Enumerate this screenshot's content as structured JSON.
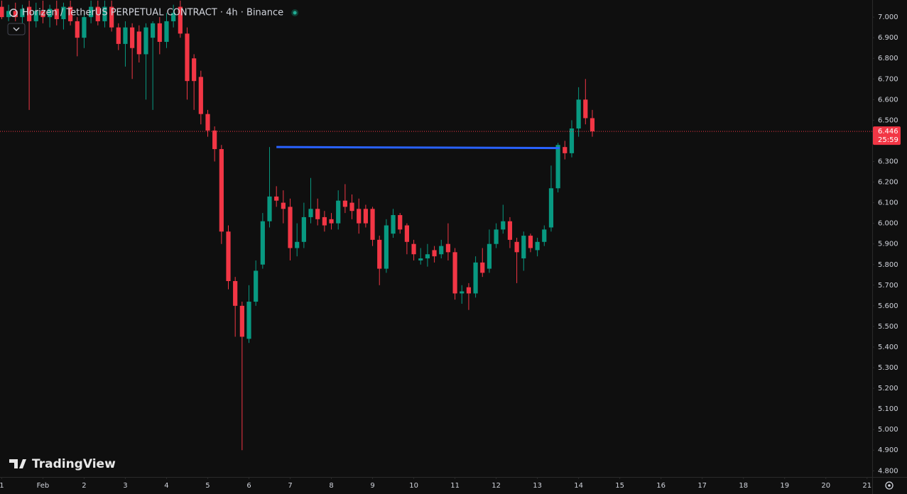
{
  "chart_data": {
    "type": "candlestick",
    "title": "Horizen / TetherUS PERPETUAL CONTRACT · 4h · Binance",
    "watermark": "TradingView",
    "up_color": "#089981",
    "down_color": "#f23645",
    "x": [
      0,
      4,
      8,
      12,
      16,
      20,
      24,
      28,
      32,
      36,
      40,
      44,
      48,
      52,
      56,
      60,
      64,
      68,
      72,
      76,
      80,
      84,
      88,
      92,
      96,
      100,
      104,
      108,
      112,
      116,
      120,
      124,
      128,
      132,
      136,
      140,
      144,
      148,
      152,
      156,
      160,
      164,
      168,
      172,
      176,
      180,
      184,
      188,
      192,
      196,
      200,
      204,
      208,
      212,
      216,
      220,
      224,
      228,
      232,
      236,
      240,
      244,
      248,
      252,
      256,
      260,
      264,
      268,
      272,
      276,
      280,
      284,
      288,
      292,
      296,
      300,
      304,
      308,
      312,
      316,
      320,
      324,
      328,
      332,
      336,
      340,
      344
    ],
    "open": [
      7.05,
      7.0,
      7.03,
      7.0,
      7.05,
      6.98,
      7.03,
      7.0,
      7.04,
      6.99,
      7.05,
      6.98,
      6.9,
      7.0,
      7.05,
      6.98,
      7.05,
      6.95,
      6.87,
      6.95,
      6.93,
      6.82,
      6.9,
      6.97,
      6.88,
      6.98,
      7.05,
      6.92,
      6.8,
      6.71,
      6.53,
      6.45,
      6.36,
      5.96,
      5.72,
      5.6,
      5.44,
      5.62,
      5.8,
      6.01,
      6.13,
      6.1,
      6.08,
      5.88,
      5.91,
      6.03,
      6.07,
      6.03,
      6.02,
      6.0,
      6.11,
      6.1,
      6.07,
      6.07,
      6.07,
      5.92,
      5.78,
      5.95,
      6.04,
      5.99,
      5.9,
      5.82,
      5.83,
      5.87,
      5.85,
      5.9,
      5.86,
      5.66,
      5.69,
      5.66,
      5.81,
      5.78,
      5.9,
      5.97,
      6.01,
      5.91,
      5.83,
      5.94,
      5.87,
      5.91,
      5.98,
      6.17,
      6.37,
      6.34,
      6.46,
      6.6,
      6.51
    ],
    "high": [
      7.08,
      7.06,
      7.07,
      7.06,
      7.08,
      7.07,
      7.08,
      7.06,
      7.08,
      7.07,
      7.08,
      7.0,
      7.02,
      7.08,
      7.08,
      7.08,
      7.08,
      6.97,
      6.98,
      6.97,
      6.96,
      6.97,
      6.98,
      7.0,
      7.02,
      7.06,
      7.08,
      6.95,
      6.82,
      6.74,
      6.55,
      6.47,
      6.38,
      5.99,
      5.74,
      5.62,
      5.7,
      5.82,
      6.05,
      6.37,
      6.18,
      6.16,
      6.12,
      6.0,
      6.1,
      6.22,
      6.12,
      6.06,
      6.05,
      6.16,
      6.19,
      6.14,
      6.12,
      6.09,
      6.08,
      5.94,
      6.02,
      6.07,
      6.05,
      6.0,
      5.92,
      5.88,
      5.9,
      5.89,
      5.92,
      6.0,
      5.88,
      5.7,
      5.71,
      5.84,
      5.88,
      5.97,
      6.0,
      6.09,
      6.03,
      5.93,
      5.96,
      5.95,
      5.93,
      5.99,
      6.28,
      6.39,
      6.4,
      6.5,
      6.66,
      6.7,
      6.55
    ],
    "low": [
      6.99,
      6.98,
      6.98,
      6.97,
      6.55,
      6.95,
      6.97,
      6.95,
      6.96,
      6.94,
      6.96,
      6.81,
      6.85,
      6.97,
      6.96,
      6.95,
      6.93,
      6.84,
      6.76,
      6.7,
      6.78,
      6.6,
      6.55,
      6.82,
      6.85,
      6.95,
      6.9,
      6.6,
      6.55,
      6.48,
      6.42,
      6.3,
      5.9,
      5.68,
      5.45,
      4.9,
      5.42,
      5.6,
      5.78,
      5.98,
      6.08,
      6.0,
      5.82,
      5.84,
      5.88,
      6.0,
      5.99,
      5.96,
      5.97,
      5.97,
      6.05,
      6.02,
      5.95,
      5.98,
      5.89,
      5.7,
      5.76,
      5.93,
      5.95,
      5.85,
      5.82,
      5.8,
      5.79,
      5.81,
      5.83,
      5.82,
      5.63,
      5.61,
      5.58,
      5.64,
      5.74,
      5.76,
      5.88,
      5.95,
      5.88,
      5.71,
      5.77,
      5.86,
      5.84,
      5.89,
      5.96,
      6.15,
      6.31,
      6.32,
      6.42,
      6.48,
      6.42
    ],
    "close": [
      7.0,
      7.03,
      7.0,
      7.04,
      6.98,
      7.03,
      7.0,
      7.04,
      6.99,
      7.05,
      6.98,
      6.9,
      7.0,
      7.05,
      6.98,
      7.05,
      6.95,
      6.87,
      6.95,
      6.85,
      6.82,
      6.95,
      6.97,
      6.88,
      6.98,
      7.02,
      6.92,
      6.69,
      6.69,
      6.53,
      6.45,
      6.36,
      5.96,
      5.72,
      5.6,
      5.45,
      5.62,
      5.77,
      6.01,
      6.13,
      6.11,
      6.07,
      5.88,
      5.91,
      6.03,
      6.07,
      6.02,
      5.99,
      6.0,
      6.11,
      6.08,
      6.06,
      6.0,
      6.0,
      5.92,
      5.78,
      5.99,
      6.04,
      5.97,
      5.91,
      5.85,
      5.83,
      5.85,
      5.84,
      5.89,
      5.86,
      5.66,
      5.67,
      5.66,
      5.81,
      5.76,
      5.9,
      5.97,
      6.01,
      5.92,
      5.86,
      5.94,
      5.88,
      5.91,
      5.97,
      6.17,
      6.38,
      6.34,
      6.46,
      6.6,
      6.51,
      6.446
    ],
    "last_price": 6.446,
    "countdown": "25:59",
    "trend_line": {
      "x": [
        160,
        325
      ],
      "y": [
        6.37,
        6.365
      ],
      "color": "#2962ff"
    },
    "xlim": [
      -1,
      507
    ],
    "ylim": [
      4.77,
      7.083
    ],
    "xticks": [
      {
        "value": 0,
        "label": "1"
      },
      {
        "value": 24,
        "label": "Feb"
      },
      {
        "value": 48,
        "label": "2"
      },
      {
        "value": 72,
        "label": "3"
      },
      {
        "value": 96,
        "label": "4"
      },
      {
        "value": 120,
        "label": "5"
      },
      {
        "value": 144,
        "label": "6"
      },
      {
        "value": 168,
        "label": "7"
      },
      {
        "value": 192,
        "label": "8"
      },
      {
        "value": 216,
        "label": "9"
      },
      {
        "value": 240,
        "label": "10"
      },
      {
        "value": 264,
        "label": "11"
      },
      {
        "value": 288,
        "label": "12"
      },
      {
        "value": 312,
        "label": "13"
      },
      {
        "value": 336,
        "label": "14"
      },
      {
        "value": 360,
        "label": "15"
      },
      {
        "value": 384,
        "label": "16"
      },
      {
        "value": 408,
        "label": "17"
      },
      {
        "value": 432,
        "label": "18"
      },
      {
        "value": 456,
        "label": "19"
      },
      {
        "value": 480,
        "label": "20"
      },
      {
        "value": 504,
        "label": "21"
      }
    ],
    "yticks": [
      {
        "value": 7.0,
        "label": "7.000"
      },
      {
        "value": 6.9,
        "label": "6.900"
      },
      {
        "value": 6.8,
        "label": "6.800"
      },
      {
        "value": 6.7,
        "label": "6.700"
      },
      {
        "value": 6.6,
        "label": "6.600"
      },
      {
        "value": 6.5,
        "label": "6.500"
      },
      {
        "value": 6.4,
        "label": "6.400"
      },
      {
        "value": 6.3,
        "label": "6.300"
      },
      {
        "value": 6.2,
        "label": "6.200"
      },
      {
        "value": 6.1,
        "label": "6.100"
      },
      {
        "value": 6.0,
        "label": "6.000"
      },
      {
        "value": 5.9,
        "label": "5.900"
      },
      {
        "value": 5.8,
        "label": "5.800"
      },
      {
        "value": 5.7,
        "label": "5.700"
      },
      {
        "value": 5.6,
        "label": "5.600"
      },
      {
        "value": 5.5,
        "label": "5.500"
      },
      {
        "value": 5.4,
        "label": "5.400"
      },
      {
        "value": 5.3,
        "label": "5.300"
      },
      {
        "value": 5.2,
        "label": "5.200"
      },
      {
        "value": 5.1,
        "label": "5.100"
      },
      {
        "value": 5.0,
        "label": "5.000"
      },
      {
        "value": 4.9,
        "label": "4.900"
      },
      {
        "value": 4.8,
        "label": "4.800"
      }
    ]
  }
}
